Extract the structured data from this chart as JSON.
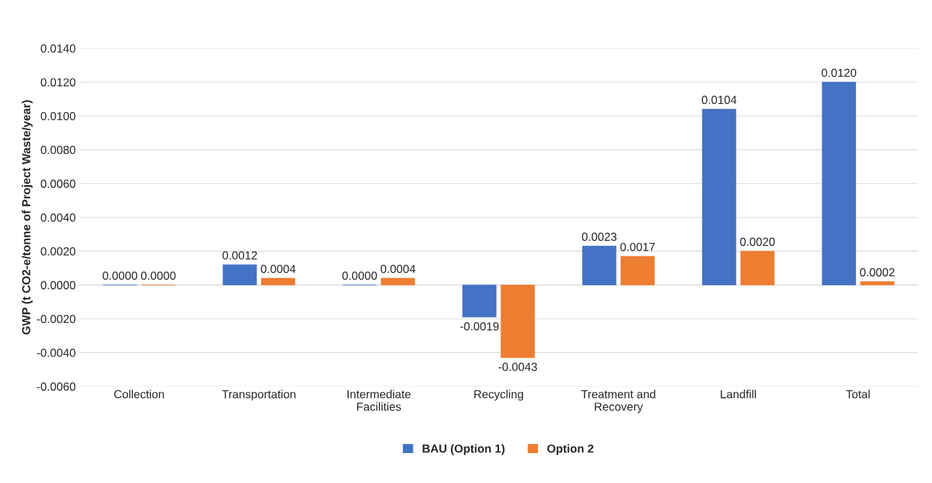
{
  "chart_data": {
    "type": "bar",
    "ylabel": "GWP (t CO2-e/tonne of Project Waste/year)",
    "categories": [
      "Collection",
      "Transportation",
      "Intermediate Facilities",
      "Recycling",
      "Treatment and Recovery",
      "Landfill",
      "Total"
    ],
    "series": [
      {
        "name": "BAU (Option 1)",
        "color": "#4472c4",
        "values": [
          0.0,
          0.0012,
          0.0,
          -0.0019,
          0.0023,
          0.0104,
          0.012
        ],
        "value_labels": [
          "0.0000",
          "0.0012",
          "0.0000",
          "-0.0019",
          "0.0023",
          "0.0104",
          "0.0120"
        ]
      },
      {
        "name": "Option 2",
        "color": "#ed7d31",
        "values": [
          0.0,
          0.0004,
          0.0004,
          -0.0043,
          0.0017,
          0.002,
          0.0002
        ],
        "value_labels": [
          "0.0000",
          "0.0004",
          "0.0004",
          "-0.0043",
          "0.0017",
          "0.0020",
          "0.0002"
        ]
      }
    ],
    "ylim": [
      -0.006,
      0.014
    ],
    "yticks": [
      {
        "value": -0.006,
        "label": "-0.0060"
      },
      {
        "value": -0.004,
        "label": "-0.0040"
      },
      {
        "value": -0.002,
        "label": "-0.0020"
      },
      {
        "value": 0.0,
        "label": "0.0000"
      },
      {
        "value": 0.002,
        "label": "0.0020"
      },
      {
        "value": 0.004,
        "label": "0.0040"
      },
      {
        "value": 0.006,
        "label": "0.0060"
      },
      {
        "value": 0.008,
        "label": "0.0080"
      },
      {
        "value": 0.01,
        "label": "0.0100"
      },
      {
        "value": 0.012,
        "label": "0.0120"
      },
      {
        "value": 0.014,
        "label": "0.0140"
      }
    ],
    "grid": "y",
    "legend": "bottom"
  }
}
